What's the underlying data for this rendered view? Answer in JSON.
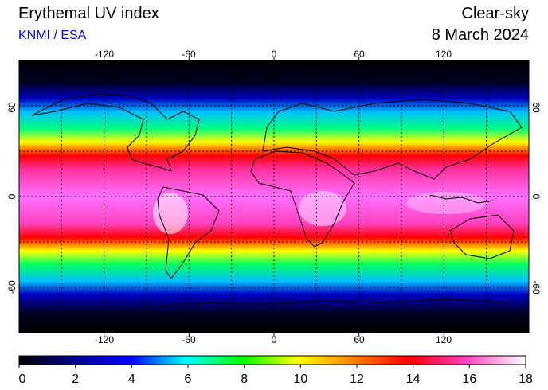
{
  "header": {
    "title": "Erythemal UV index",
    "source": "KNMI / ESA",
    "source_color": "#0000ff",
    "mode": "Clear-sky",
    "date": "8 March 2024"
  },
  "map": {
    "projection": "equirectangular",
    "lon_range": [
      -180,
      180
    ],
    "lat_range": [
      -90,
      90
    ],
    "grid": true,
    "top_lon_ticks": [
      "-120",
      "-60",
      "0",
      "60",
      "120"
    ],
    "bottom_lon_ticks": [
      "-120",
      "-60",
      "0",
      "60",
      "120"
    ],
    "left_lat_ticks": [
      "60",
      "0",
      "-60"
    ],
    "right_lat_ticks": [
      "60",
      "0",
      "-60"
    ]
  },
  "colorbar": {
    "ticks": [
      "0",
      "2",
      "4",
      "6",
      "8",
      "10",
      "12",
      "14",
      "16",
      "18"
    ],
    "range": [
      0,
      18
    ]
  }
}
